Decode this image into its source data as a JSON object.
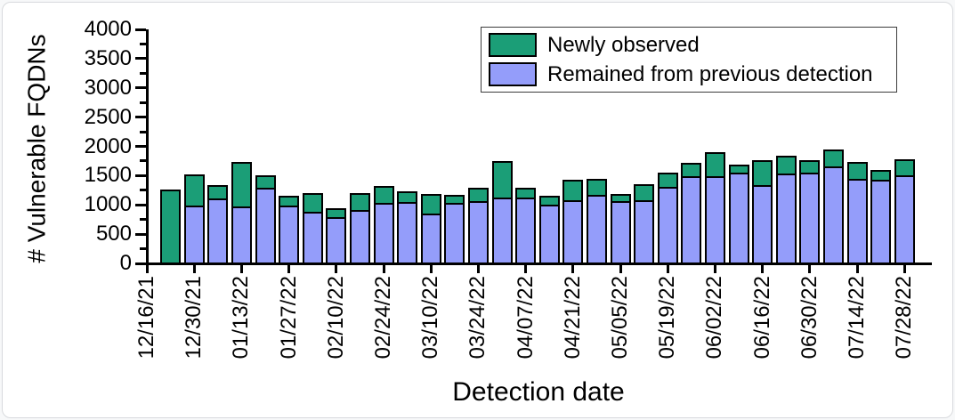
{
  "chart_data": {
    "type": "bar",
    "stacked": true,
    "title": "",
    "xlabel": "Detection date",
    "ylabel": "# Vulnerable FQDNs",
    "ylim": [
      0,
      4000
    ],
    "y_major_tick_step": 500,
    "y_minor_tick_step": 250,
    "y_tick_labels": [
      "0",
      "500",
      "1000",
      "1500",
      "2000",
      "2500",
      "3000",
      "3500",
      "4000"
    ],
    "x_tick_labels": [
      "12/16/21",
      "12/30/21",
      "01/13/22",
      "01/27/22",
      "02/10/22",
      "02/24/22",
      "03/10/22",
      "03/24/22",
      "04/07/22",
      "04/21/22",
      "05/05/22",
      "05/19/22",
      "06/02/22",
      "06/16/22",
      "06/30/22",
      "07/14/22",
      "07/28/22"
    ],
    "categories": [
      "12/23/21",
      "12/30/21",
      "01/06/22",
      "01/13/22",
      "01/20/22",
      "01/27/22",
      "02/03/22",
      "02/10/22",
      "02/17/22",
      "02/24/22",
      "03/03/22",
      "03/10/22",
      "03/17/22",
      "03/24/22",
      "03/31/22",
      "04/07/22",
      "04/14/22",
      "04/21/22",
      "04/28/22",
      "05/05/22",
      "05/12/22",
      "05/19/22",
      "05/26/22",
      "06/02/22",
      "06/09/22",
      "06/16/22",
      "06/23/22",
      "06/30/22",
      "07/07/22",
      "07/14/22",
      "07/21/22",
      "07/28/22"
    ],
    "series": [
      {
        "name": "Remained from previous detection",
        "color": "#949dfa",
        "values": [
          0,
          980,
          1090,
          960,
          1285,
          970,
          870,
          780,
          890,
          1020,
          1030,
          840,
          1015,
          1045,
          1110,
          1115,
          995,
          1070,
          1155,
          1055,
          1070,
          1300,
          1475,
          1475,
          1530,
          1325,
          1515,
          1540,
          1640,
          1435,
          1420,
          1490
        ]
      },
      {
        "name": "Newly observed",
        "color": "#1b9e77",
        "values": [
          1250,
          520,
          230,
          760,
          205,
          175,
          315,
          150,
          295,
          290,
          190,
          330,
          135,
          240,
          630,
          155,
          140,
          345,
          280,
          115,
          275,
          240,
          225,
          405,
          150,
          430,
          305,
          215,
          295,
          285,
          155,
          280
        ]
      }
    ],
    "legend_position": "top-right",
    "grid": false
  },
  "legend": {
    "items": [
      {
        "label": "Newly observed",
        "color": "#1b9e77"
      },
      {
        "label": "Remained from previous detection",
        "color": "#949dfa"
      }
    ]
  }
}
